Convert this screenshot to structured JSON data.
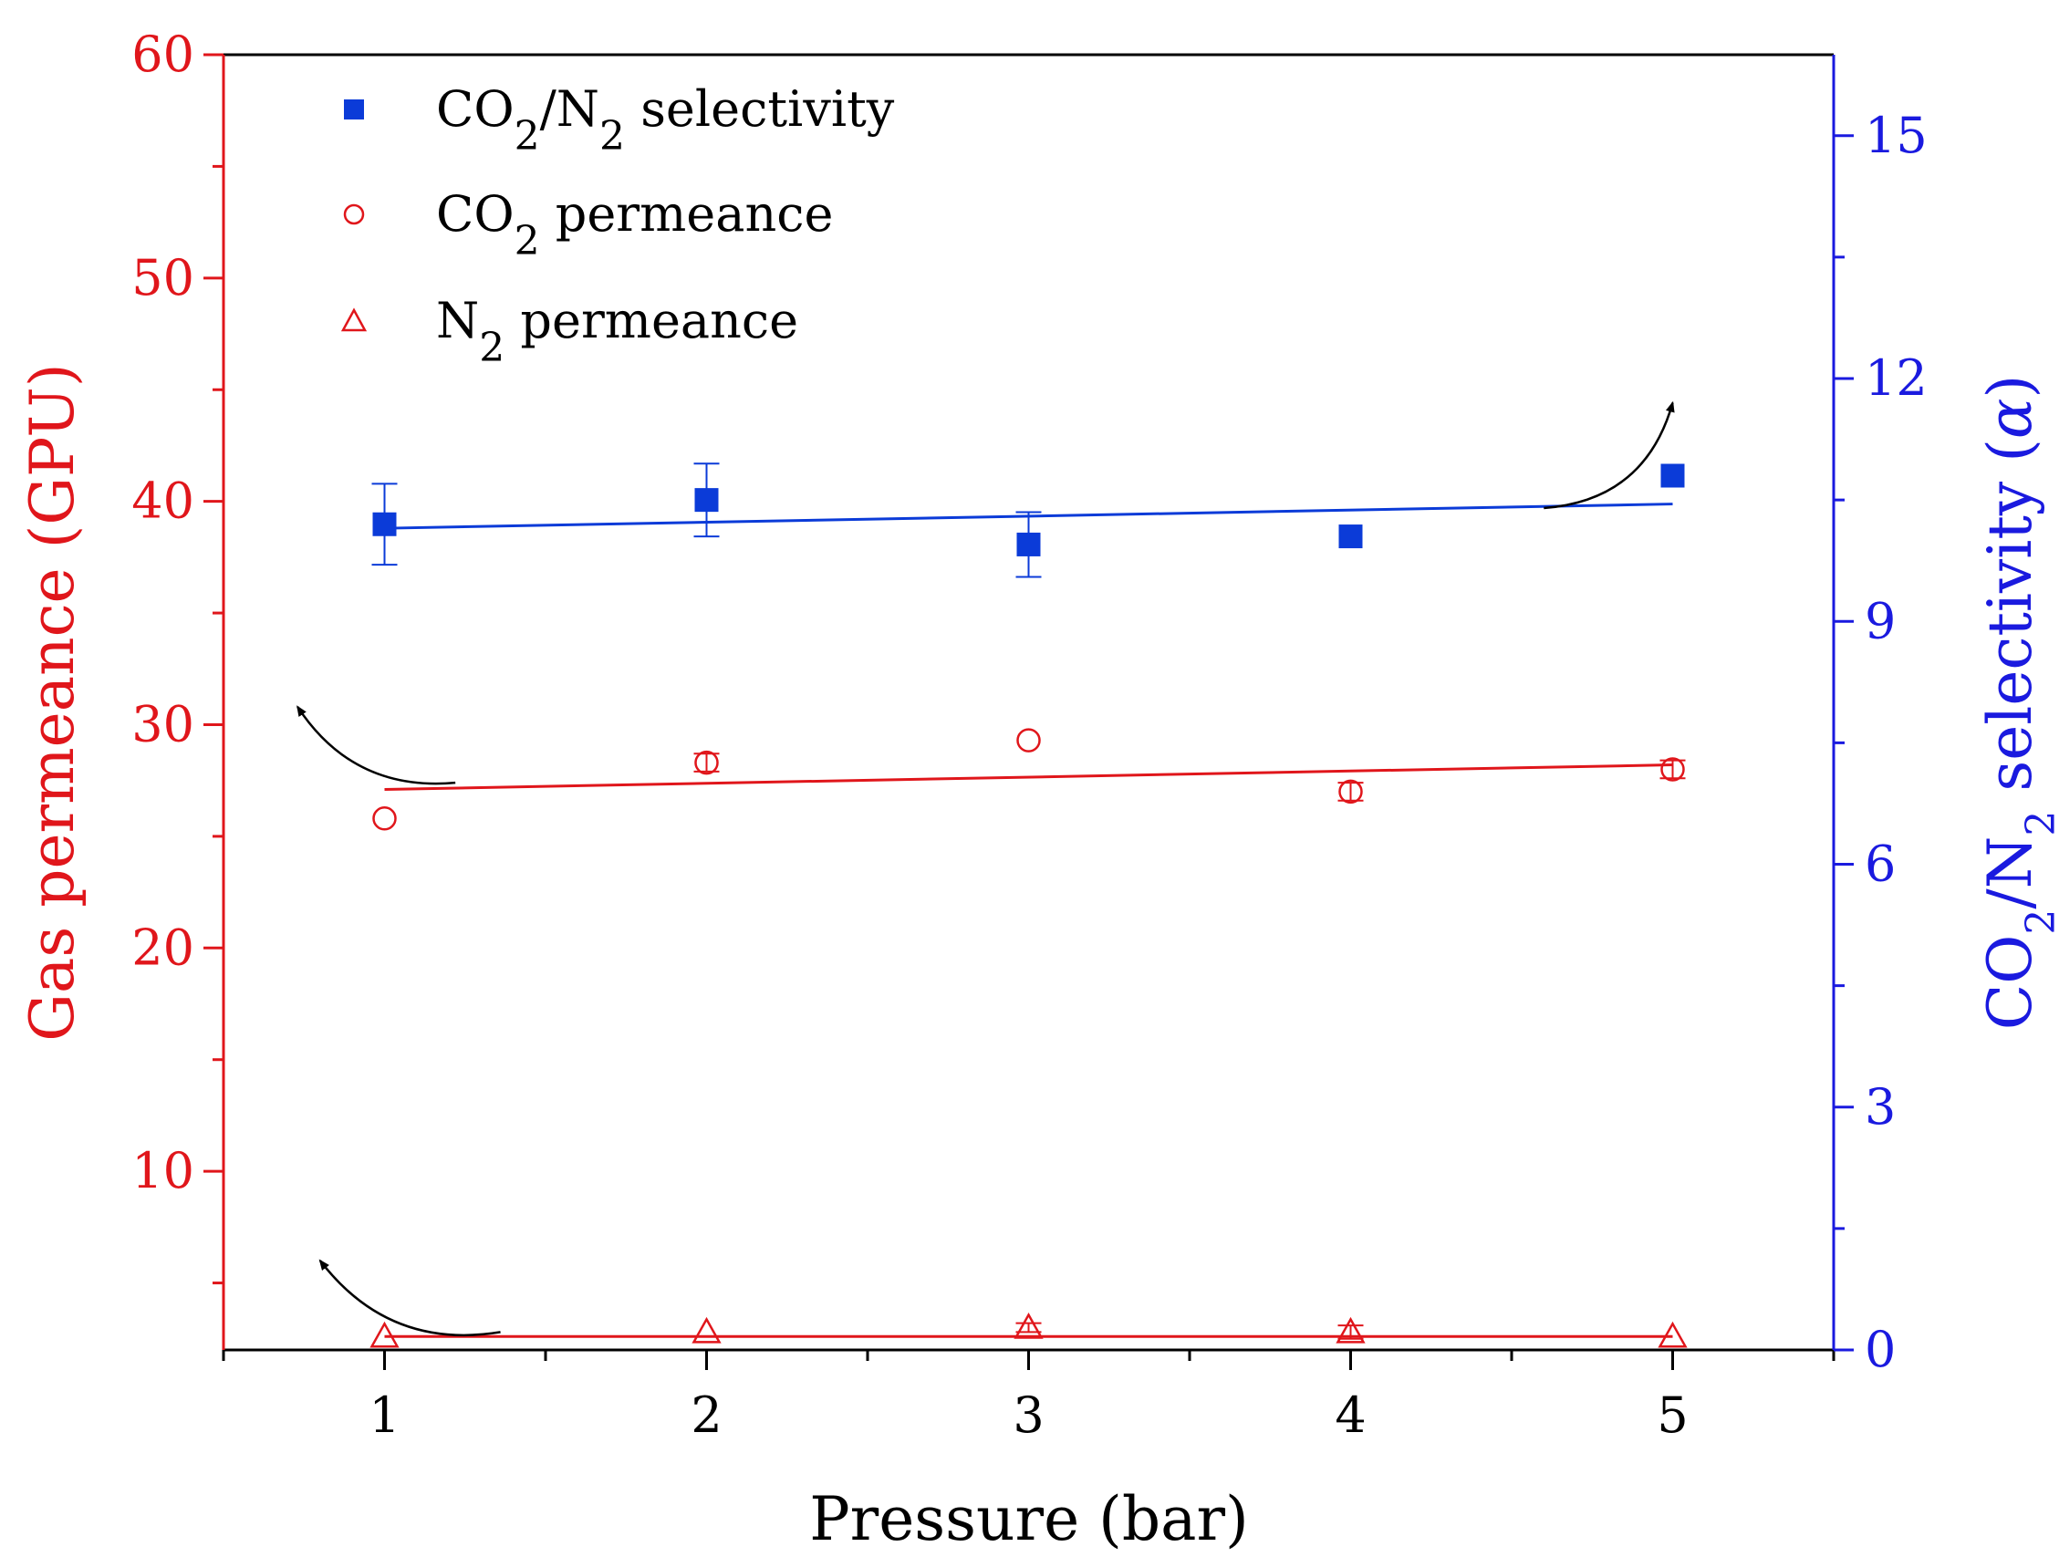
{
  "chart_data": {
    "type": "scatter",
    "xlabel": "Pressure (bar)",
    "x_ticks": [
      1,
      2,
      3,
      4,
      5
    ],
    "xlim": [
      0.5,
      5.5
    ],
    "left_axis": {
      "label": "Gas permeance (GPU)",
      "color": "#e0161b",
      "ylim": [
        2,
        60
      ],
      "ticks": [
        10,
        20,
        30,
        40,
        50,
        60
      ]
    },
    "right_axis": {
      "label_parts": {
        "a": "CO",
        "sub1": "2",
        "b": "/N",
        "sub2": "2",
        "c": " selectivity (",
        "alpha": "α",
        "d": ")"
      },
      "color": "#1a1adf",
      "ylim": [
        0,
        16
      ],
      "ticks": [
        0,
        3,
        6,
        9,
        12,
        15
      ]
    },
    "legend": {
      "placement": "top-left",
      "items": [
        {
          "key": "selectivity",
          "marker": "filled-square",
          "color": "#0b3bd8",
          "a": "CO",
          "sub1": "2",
          "b": "/N",
          "sub2": "2",
          "c": " selectivity"
        },
        {
          "key": "co2",
          "marker": "open-circle",
          "color": "#e0161b",
          "a": "CO",
          "sub1": "2",
          "b": " permeance",
          "sub2": "",
          "c": ""
        },
        {
          "key": "n2",
          "marker": "open-triangle",
          "color": "#e0161b",
          "a": "N",
          "sub1": "2",
          "b": " permeance",
          "sub2": "",
          "c": ""
        }
      ]
    },
    "series": [
      {
        "key": "selectivity",
        "axis": "right",
        "marker": "filled-square",
        "color": "#0b3bd8",
        "x": [
          1,
          2,
          3,
          4,
          5
        ],
        "y": [
          10.2,
          10.5,
          9.95,
          10.05,
          10.8
        ],
        "err": [
          0.5,
          0.45,
          0.4,
          0,
          0
        ],
        "fit": [
          [
            1,
            10.15
          ],
          [
            5,
            10.45
          ]
        ]
      },
      {
        "key": "co2",
        "axis": "left",
        "marker": "open-circle",
        "color": "#e0161b",
        "x": [
          1,
          2,
          3,
          4,
          5
        ],
        "y": [
          25.8,
          28.3,
          29.3,
          27.0,
          28.0
        ],
        "err": [
          0,
          0.4,
          0,
          0.4,
          0.4
        ],
        "fit": [
          [
            1,
            27.1
          ],
          [
            5,
            28.2
          ]
        ]
      },
      {
        "key": "n2",
        "axis": "left",
        "marker": "open-triangle",
        "color": "#e0161b",
        "x": [
          1,
          2,
          3,
          4,
          5
        ],
        "y": [
          2.6,
          2.8,
          3.0,
          2.8,
          2.6
        ],
        "err": [
          0,
          0,
          0.2,
          0.3,
          0
        ],
        "fit": [
          [
            1,
            2.6
          ],
          [
            5,
            2.6
          ]
        ]
      }
    ],
    "annotations": {
      "arrow_color": "#000000",
      "selectivity_arrow": {
        "from": [
          4.6,
          10.4
        ],
        "to": [
          5.0,
          11.7
        ]
      },
      "co2_arrow": {
        "from": [
          1.22,
          27.4
        ],
        "to": [
          0.73,
          30.8
        ]
      },
      "n2_arrow": {
        "from": [
          1.36,
          2.8
        ],
        "to": [
          0.8,
          6.0
        ]
      }
    }
  }
}
